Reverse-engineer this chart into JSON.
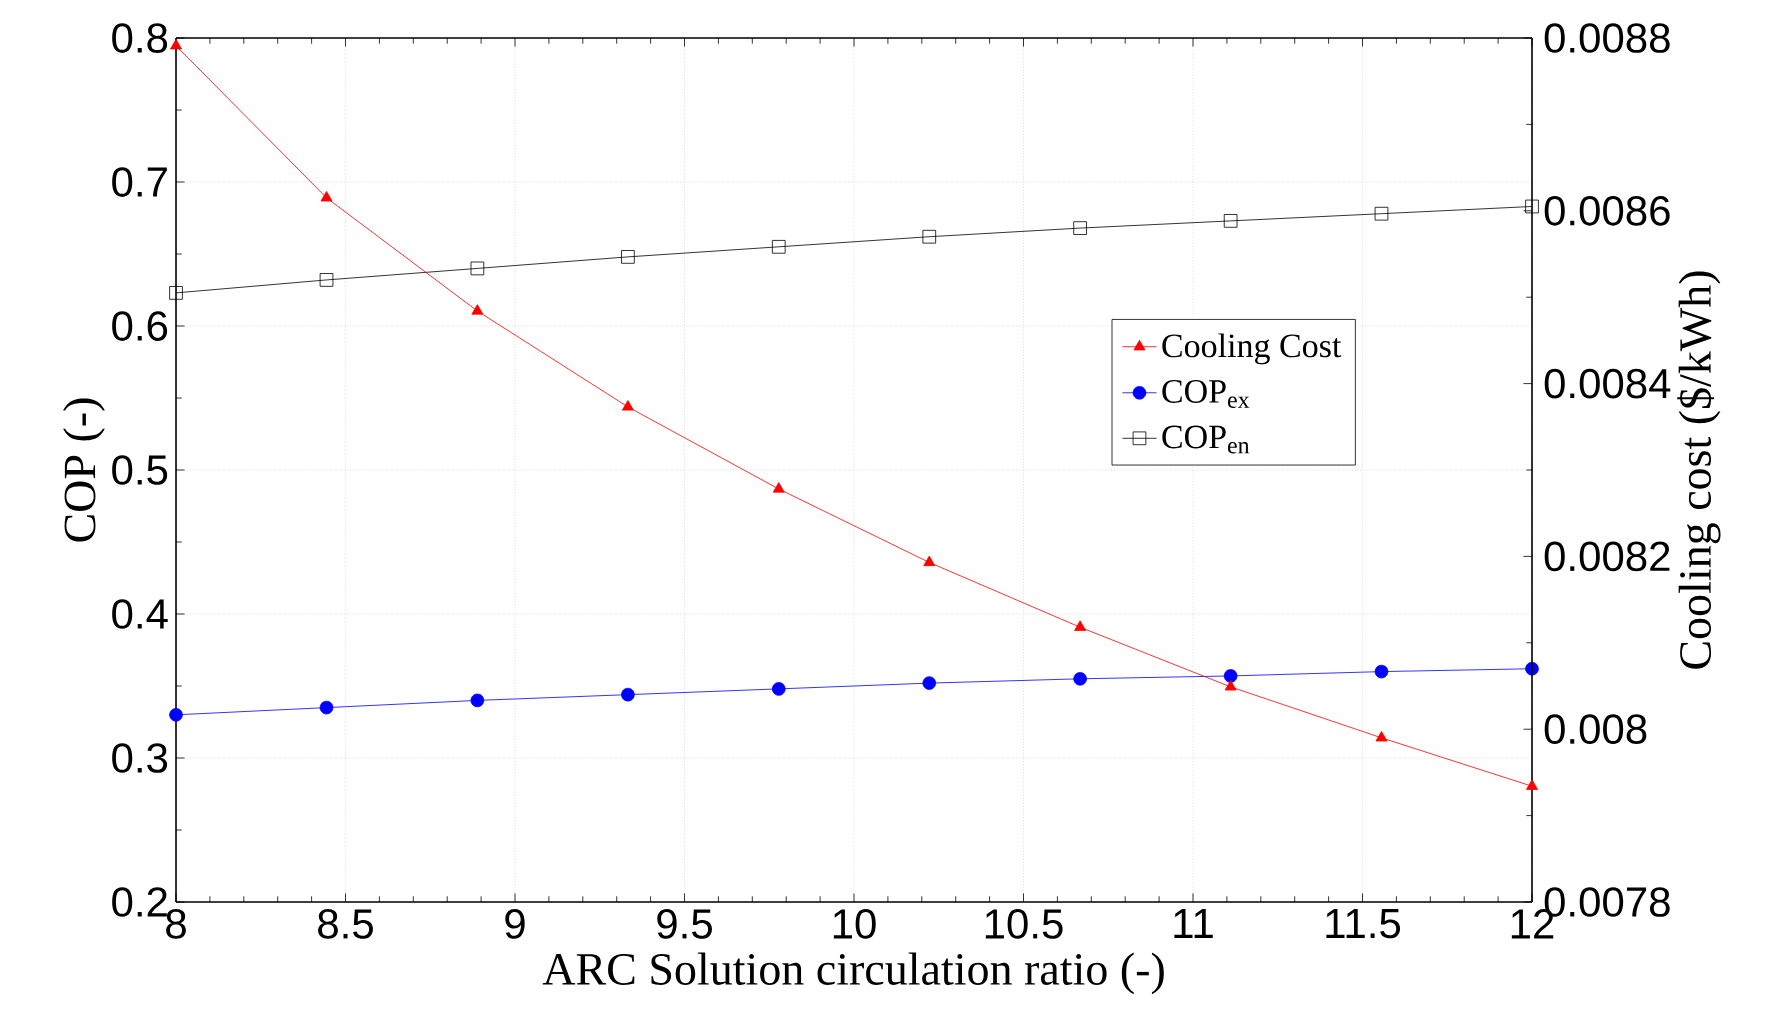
{
  "chart_data": {
    "type": "line",
    "xlabel": "ARC Solution circulation ratio (-)",
    "ylabel": "COP (-)",
    "y2label": "Cooling cost ($/kWh)",
    "x": [
      8,
      8.444,
      8.889,
      9.333,
      9.778,
      10.222,
      10.667,
      11.111,
      11.556,
      12
    ],
    "series": [
      {
        "name": "Cooling Cost",
        "color": "#ff0000",
        "axis": "y2",
        "marker": "triangle",
        "values": [
          0.008791,
          0.008615,
          0.008484,
          0.008373,
          0.008278,
          0.008193,
          0.008118,
          0.008049,
          0.00799,
          0.007934
        ]
      },
      {
        "name": "COP$_{ex}$",
        "color": "#0000ff",
        "marker": "circle",
        "values": [
          0.33,
          0.335,
          0.34,
          0.344,
          0.348,
          0.352,
          0.355,
          0.357,
          0.36,
          0.362
        ]
      },
      {
        "name": "COP$_{en}$",
        "color": "#000000",
        "marker": "square",
        "values": [
          0.623,
          0.632,
          0.64,
          0.648,
          0.655,
          0.662,
          0.668,
          0.673,
          0.678,
          0.683
        ]
      }
    ],
    "xlim": [
      8,
      12
    ],
    "xticks": [
      8,
      8.5,
      9,
      9.5,
      10,
      10.5,
      11,
      11.5,
      12
    ],
    "ylim": [
      0.2,
      0.8
    ],
    "yticks": [
      0.2,
      0.3,
      0.4,
      0.5,
      0.6,
      0.7,
      0.8
    ],
    "y2lim": [
      0.0078,
      0.0088
    ],
    "y2ticks": [
      0.0078,
      0.008,
      0.0082,
      0.0084,
      0.0086,
      0.0088
    ],
    "grid": true,
    "legend": "right",
    "line_style": "solid"
  }
}
